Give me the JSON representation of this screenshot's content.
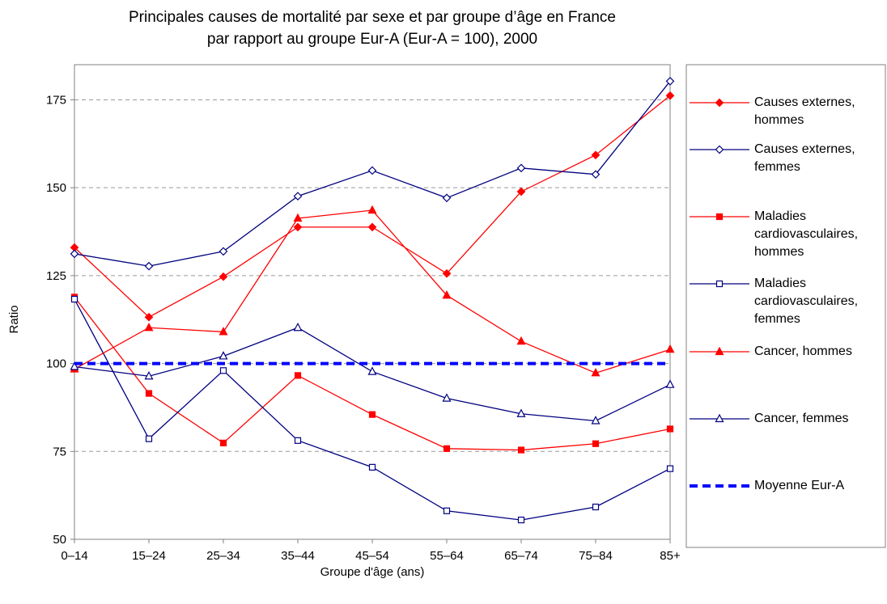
{
  "chart_data": {
    "type": "line",
    "title": [
      "Principales causes de mortalité par sexe et par groupe d’âge en France",
      "par rapport au groupe Eur-A (Eur-A = 100), 2000"
    ],
    "x_label": "Groupe d'âge (ans)",
    "y_label": "Ratio",
    "categories": [
      "0–14",
      "15–24",
      "25–34",
      "35–44",
      "45–54",
      "55–64",
      "65–74",
      "75–84",
      "85+"
    ],
    "ylim": [
      50,
      185
    ],
    "yticks": [
      50,
      75,
      100,
      125,
      150,
      175
    ],
    "grid": true,
    "series": [
      {
        "name": "Causes externes, hommes",
        "color": "#ff0000",
        "marker": "diamond",
        "filled": true,
        "values": [
          133,
          113.2,
          124.7,
          138.8,
          138.8,
          125.6,
          148.9,
          159.3,
          176.2
        ]
      },
      {
        "name": "Causes externes, femmes",
        "color": "#000080",
        "marker": "diamond",
        "filled": false,
        "values": [
          131.2,
          127.7,
          131.9,
          147.6,
          154.9,
          147.1,
          155.6,
          153.8,
          180.3
        ]
      },
      {
        "name": "Maladies cardiovasculaires, hommes",
        "color": "#ff0000",
        "marker": "square",
        "filled": true,
        "values": [
          118.9,
          91.5,
          77.4,
          96.6,
          85.5,
          75.8,
          75.4,
          77.2,
          81.4
        ]
      },
      {
        "name": "Maladies cardiovasculaires, femmes",
        "color": "#000080",
        "marker": "square",
        "filled": false,
        "values": [
          118.3,
          78.6,
          98,
          78.1,
          70.5,
          58.1,
          55.5,
          59.2,
          70.1
        ]
      },
      {
        "name": "Cancer, hommes",
        "color": "#ff0000",
        "marker": "triangle",
        "filled": true,
        "values": [
          98.4,
          110.2,
          109,
          141.3,
          143.6,
          119.4,
          106.3,
          97.3,
          104
        ]
      },
      {
        "name": "Cancer, femmes",
        "color": "#000080",
        "marker": "triangle",
        "filled": false,
        "values": [
          99.1,
          96.4,
          102.1,
          110.2,
          97.7,
          90.1,
          85.7,
          83.7,
          94
        ]
      },
      {
        "name": "Moyenne Eur-A",
        "color": "#0000ff",
        "marker": "none",
        "dashed": true,
        "values": [
          100,
          100,
          100,
          100,
          100,
          100,
          100,
          100,
          100
        ]
      }
    ]
  }
}
